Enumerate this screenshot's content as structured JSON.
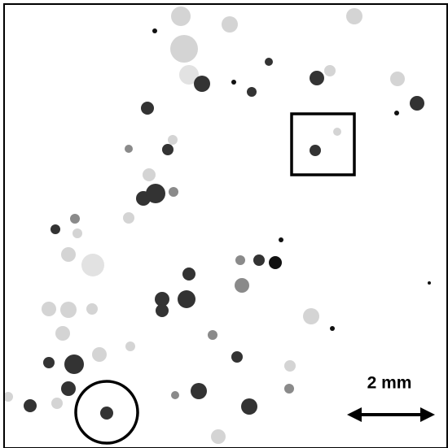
{
  "scale_bar": {
    "label": "2 mm"
  }
}
